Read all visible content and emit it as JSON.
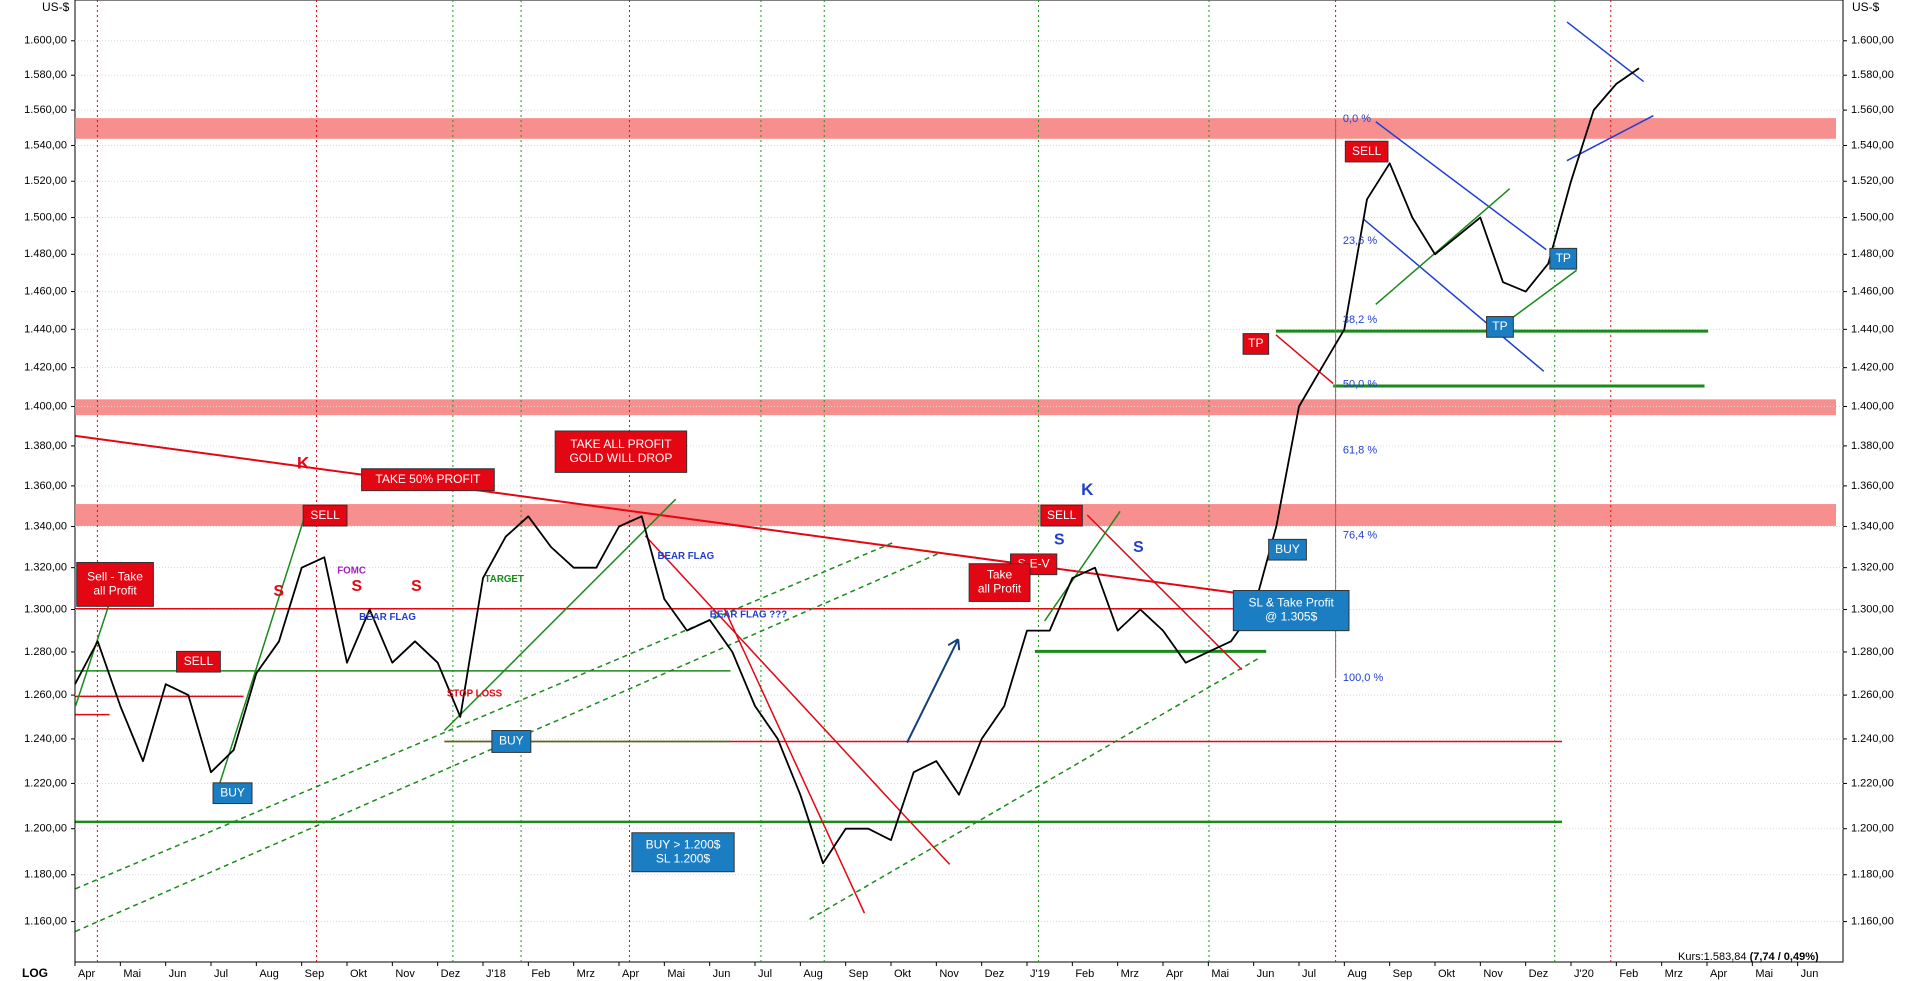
{
  "chart_data": {
    "type": "line",
    "axis_unit_left": "US-$",
    "axis_unit_right": "US-$",
    "scale_label": "LOG",
    "log_scale": true,
    "grid": true,
    "color": "#000000",
    "price_info": {
      "label": "Kurs:1.583,84",
      "change": "(7,74 / 0,49%)"
    },
    "ylim": [
      1143,
      1624
    ],
    "yticks": [
      {
        "value": 1160,
        "label": "1.160,00"
      },
      {
        "value": 1180,
        "label": "1.180,00"
      },
      {
        "value": 1200,
        "label": "1.200,00"
      },
      {
        "value": 1220,
        "label": "1.220,00"
      },
      {
        "value": 1240,
        "label": "1.240,00"
      },
      {
        "value": 1260,
        "label": "1.260,00"
      },
      {
        "value": 1280,
        "label": "1.280,00"
      },
      {
        "value": 1300,
        "label": "1.300,00"
      },
      {
        "value": 1320,
        "label": "1.320,00"
      },
      {
        "value": 1340,
        "label": "1.340,00"
      },
      {
        "value": 1360,
        "label": "1.360,00"
      },
      {
        "value": 1380,
        "label": "1.380,00"
      },
      {
        "value": 1400,
        "label": "1.400,00"
      },
      {
        "value": 1420,
        "label": "1.420,00"
      },
      {
        "value": 1440,
        "label": "1.440,00"
      },
      {
        "value": 1460,
        "label": "1.460,00"
      },
      {
        "value": 1480,
        "label": "1.480,00"
      },
      {
        "value": 1500,
        "label": "1.500,00"
      },
      {
        "value": 1520,
        "label": "1.520,00"
      },
      {
        "value": 1540,
        "label": "1.540,00"
      },
      {
        "value": 1560,
        "label": "1.560,00"
      },
      {
        "value": 1580,
        "label": "1.580,00"
      },
      {
        "value": 1600,
        "label": "1.600,00"
      }
    ],
    "categories": [
      "Apr",
      null,
      "Mai",
      null,
      "Jun",
      null,
      "Jul",
      null,
      "Aug",
      null,
      "Sep",
      null,
      "Okt",
      null,
      "Nov",
      null,
      "Dez",
      null,
      "J'18",
      null,
      "Feb",
      null,
      "Mrz",
      null,
      "Apr",
      null,
      "Mai",
      null,
      "Jun",
      null,
      "Jul",
      null,
      "Aug",
      null,
      "Sep",
      null,
      "Okt",
      null,
      "Nov",
      null,
      "Dez",
      null,
      "J'19",
      null,
      "Feb",
      null,
      "Mrz",
      null,
      "Apr",
      null,
      "Mai",
      null,
      "Jun",
      null,
      "Jul",
      null,
      "Aug",
      null,
      "Sep",
      null,
      "Okt",
      null,
      "Nov",
      null,
      "Dez",
      null,
      "J'20",
      null,
      "Feb",
      null,
      "Mrz",
      null,
      "Apr",
      null,
      "Mai",
      null,
      "Jun",
      null
    ],
    "values": [
      1265,
      1285,
      1255,
      1230,
      1265,
      1260,
      1225,
      1235,
      1270,
      1285,
      1320,
      1325,
      1275,
      1300,
      1275,
      1285,
      1275,
      1250,
      1315,
      1335,
      1345,
      1330,
      1320,
      1320,
      1340,
      1345,
      1305,
      1290,
      1295,
      1280,
      1255,
      1240,
      1215,
      1185,
      1200,
      1200,
      1195,
      1225,
      1230,
      1215,
      1240,
      1255,
      1290,
      1290,
      1315,
      1320,
      1290,
      1300,
      1290,
      1275,
      1280,
      1285,
      1300,
      1340,
      1400,
      1420,
      1440,
      1510,
      1530,
      1500,
      1480,
      1490,
      1500,
      1465,
      1460,
      1475,
      1520,
      1560,
      1575,
      1584,
      null,
      null,
      null,
      null,
      null,
      null,
      null,
      null
    ],
    "annotations": [
      {
        "text": [
          "Sell - Take",
          "all Profit"
        ],
        "color": "#e30613"
      },
      {
        "text": [
          "SELL"
        ],
        "color": "#e30613"
      },
      {
        "text": [
          "BUY"
        ],
        "color": "#1b7ec2"
      },
      {
        "text": [
          "SELL"
        ],
        "color": "#e30613"
      },
      {
        "text": [
          "TAKE 50% PROFIT"
        ],
        "color": "#e30613"
      },
      {
        "text": [
          "TAKE ALL PROFIT",
          "GOLD WILL DROP"
        ],
        "color": "#e30613"
      },
      {
        "text": [
          "BUY"
        ],
        "color": "#1b7ec2"
      },
      {
        "text": [
          "BUY > 1.200$",
          "SL 1.200$"
        ],
        "color": "#1b7ec2"
      },
      {
        "text": [
          "SELL"
        ],
        "color": "#e30613"
      },
      {
        "text": [
          "S-E-V"
        ],
        "color": "#e30613"
      },
      {
        "text": [
          "Take",
          "all Profit"
        ],
        "color": "#e30613"
      },
      {
        "text": [
          "BUY"
        ],
        "color": "#1b7ec2"
      },
      {
        "text": [
          "SL & Take Profit",
          "@ 1.305$"
        ],
        "color": "#1b7ec2"
      },
      {
        "text": [
          "TP"
        ],
        "color": "#e30613"
      },
      {
        "text": [
          "SELL"
        ],
        "color": "#e30613"
      },
      {
        "text": [
          "TP"
        ],
        "color": "#1b7ec2"
      },
      {
        "text": [
          "TP"
        ],
        "color": "#1b7ec2"
      }
    ],
    "fib_levels": [
      "0,0 %",
      "23,6 %",
      "38,2 %",
      "50,0 %",
      "61,8 %",
      "76,4 %",
      "100,0 %"
    ],
    "labels": [
      {
        "text": "K",
        "color": "#e30613"
      },
      {
        "text": "S",
        "color": "#e30613"
      },
      {
        "text": "S",
        "color": "#e30613"
      },
      {
        "text": "S",
        "color": "#e30613"
      },
      {
        "text": "K",
        "color": "#1f3fd0"
      },
      {
        "text": "S",
        "color": "#1f3fd0"
      },
      {
        "text": "S",
        "color": "#1f3fd0"
      },
      {
        "text": "FOMC",
        "color": "#a020c0"
      },
      {
        "text": "BEAR FLAG",
        "color": "#1f3fd0"
      },
      {
        "text": "TARGET",
        "color": "#1a8a1a"
      },
      {
        "text": "STOP LOSS",
        "color": "#e30613"
      },
      {
        "text": "BEAR FLAG",
        "color": "#1f3fd0"
      },
      {
        "text": "BEAR FLAG ???",
        "color": "#1f3fd0"
      }
    ]
  }
}
